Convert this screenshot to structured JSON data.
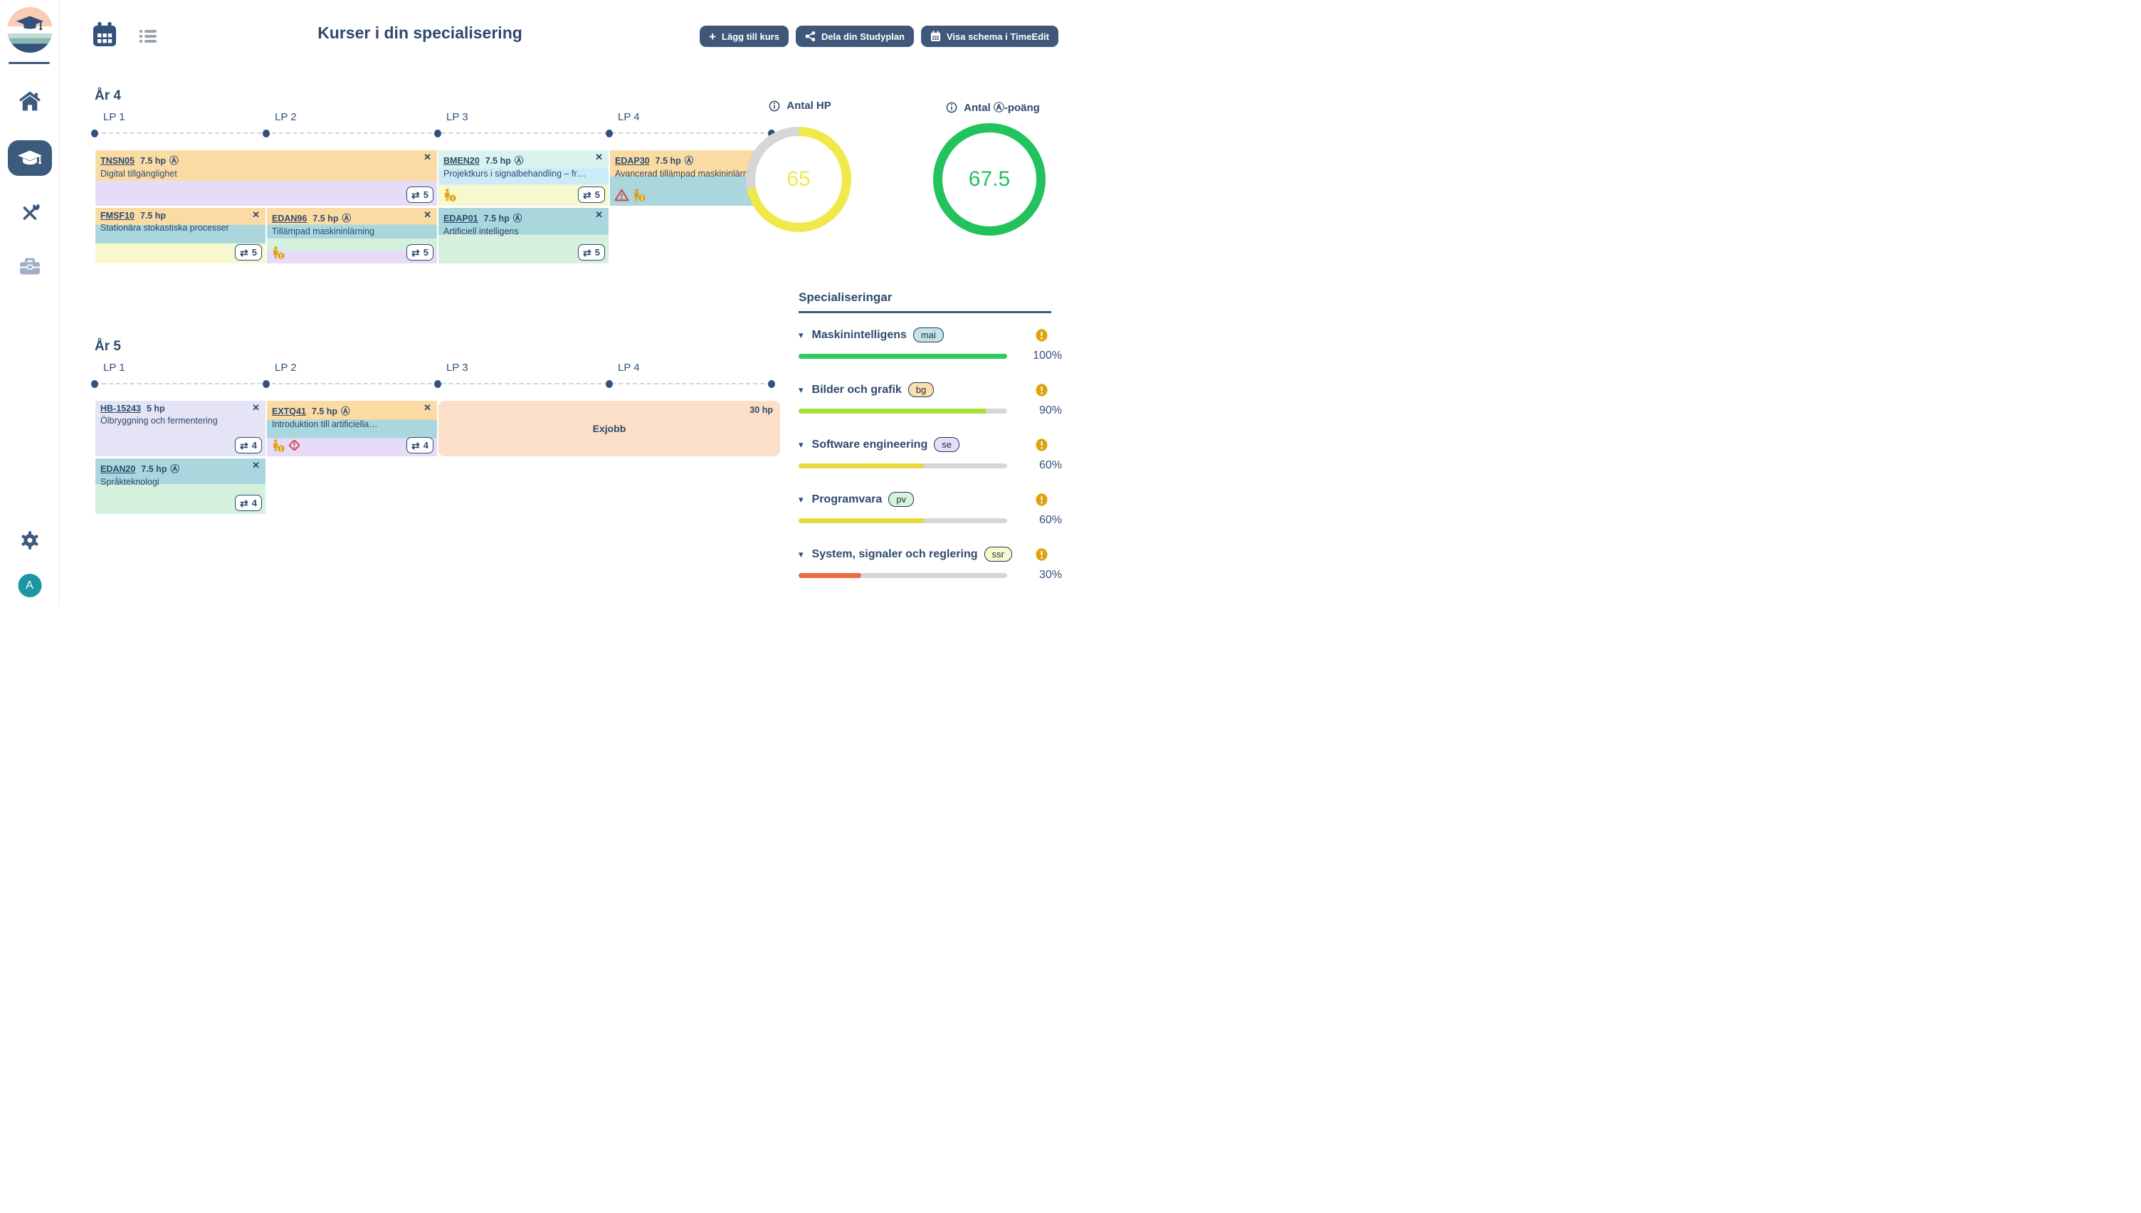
{
  "header": {
    "title": "Kurser i din specialisering",
    "buttons": [
      {
        "label": "Lägg till kurs"
      },
      {
        "label": "Dela din Studyplan"
      },
      {
        "label": "Visa schema i TimeEdit"
      }
    ]
  },
  "sidebar": {
    "avatar_letter": "A"
  },
  "advanced_glyph": "Ⓐ",
  "years": [
    {
      "label": "År 4",
      "periods": [
        "LP 1",
        "LP 2",
        "LP 3",
        "LP 4"
      ],
      "rows": [
        [
          {
            "code": "TNSN05",
            "credits": "7.5 hp",
            "advanced": true,
            "name": "Digital tillgänglighet",
            "col": 1,
            "span": 2,
            "stripes": [
              {
                "color": "#fbdba4",
                "to": 55
              },
              {
                "color": "#e6dcf7",
                "to": 100
              }
            ],
            "swap": "5",
            "warnings": []
          },
          {
            "code": "BMEN20",
            "credits": "7.5 hp",
            "advanced": true,
            "name": "Projektkurs i signalbehandling – fr…",
            "col": 3,
            "span": 1,
            "stripes": [
              {
                "color": "#d9f3ee",
                "to": 33
              },
              {
                "color": "#cdebf7",
                "to": 62
              },
              {
                "color": "#f7f8cd",
                "to": 100
              }
            ],
            "swap": "5",
            "warnings": [
              "person"
            ]
          },
          {
            "code": "EDAP30",
            "credits": "7.5 hp",
            "advanced": true,
            "name": "Avancerad tillämpad maskininlärning",
            "col": 4,
            "span": 1,
            "stripes": [
              {
                "color": "#fbdba4",
                "to": 47
              },
              {
                "color": "#a9d7dd",
                "to": 100
              }
            ],
            "swap": "5",
            "warnings": [
              "triangle",
              "person"
            ]
          }
        ],
        [
          {
            "code": "FMSF10",
            "credits": "7.5 hp",
            "advanced": false,
            "name": "Stationära stokastiska processer",
            "col": 1,
            "span": 1,
            "stripes": [
              {
                "color": "#fbdba4",
                "to": 31
              },
              {
                "color": "#a9d7dd",
                "to": 64
              },
              {
                "color": "#f7f8cd",
                "to": 100
              }
            ],
            "swap": "5",
            "warnings": []
          },
          {
            "code": "EDAN96",
            "credits": "7.5 hp",
            "advanced": true,
            "name": "Tillämpad maskininlärning",
            "col": 2,
            "span": 1,
            "stripes": [
              {
                "color": "#fbdba4",
                "to": 30
              },
              {
                "color": "#a9d7dd",
                "to": 55
              },
              {
                "color": "#d5f1dd",
                "to": 76
              },
              {
                "color": "#e6dcf7",
                "to": 100
              }
            ],
            "swap": "5",
            "warnings": [
              "person"
            ]
          },
          {
            "code": "EDAP01",
            "credits": "7.5 hp",
            "advanced": true,
            "name": "Artificiell intelligens",
            "col": 3,
            "span": 1,
            "stripes": [
              {
                "color": "#a9d7dd",
                "to": 48
              },
              {
                "color": "#d5f1dd",
                "to": 100
              }
            ],
            "swap": "5",
            "warnings": []
          }
        ]
      ]
    },
    {
      "label": "År 5",
      "periods": [
        "LP 1",
        "LP 2",
        "LP 3",
        "LP 4"
      ],
      "rows": [
        [
          {
            "code": "HB-15243",
            "credits": "5 hp",
            "advanced": false,
            "name": "Ölbryggning och fermentering",
            "col": 1,
            "span": 1,
            "stripes": [
              {
                "color": "#e5e3f6",
                "to": 100
              }
            ],
            "swap": "4",
            "warnings": []
          },
          {
            "code": "EXTQ41",
            "credits": "7.5 hp",
            "advanced": true,
            "name": "Introduktion till artificiella…",
            "col": 2,
            "span": 1,
            "stripes": [
              {
                "color": "#fbdba4",
                "to": 34
              },
              {
                "color": "#a9d7dd",
                "to": 67
              },
              {
                "color": "#e6dcf7",
                "to": 100
              }
            ],
            "swap": "4",
            "warnings": [
              "person",
              "diamond"
            ]
          },
          {
            "type": "block",
            "title": "Exjobb",
            "credits": "30 hp",
            "col": 3,
            "span": 2,
            "color": "#fcdfc8"
          }
        ],
        [
          {
            "code": "EDAN20",
            "credits": "7.5 hp",
            "advanced": true,
            "name": "Språkteknologi",
            "col": 1,
            "span": 1,
            "stripes": [
              {
                "color": "#a9d7dd",
                "to": 46
              },
              {
                "color": "#d5f1dd",
                "to": 100
              }
            ],
            "swap": "4",
            "warnings": []
          }
        ]
      ]
    }
  ],
  "stats": [
    {
      "label": "Antal HP",
      "value": "65",
      "percent": 72,
      "ring_color": "#efe94b",
      "track_color": "#d6d6d6"
    },
    {
      "label": "Antal Ⓐ-poäng",
      "value": "67.5",
      "percent": 100,
      "ring_color": "#22c25d",
      "track_color": "#d6d6d6"
    }
  ],
  "specializations": {
    "title": "Specialiseringar",
    "items": [
      {
        "name": "Maskinintelligens",
        "tag": "mai",
        "tag_color": "#c2e4ea",
        "percent": 100,
        "percent_label": "100%",
        "bar_color": "#2ecb5e"
      },
      {
        "name": "Bilder och grafik",
        "tag": "bg",
        "tag_color": "#fcdfb1",
        "percent": 90,
        "percent_label": "90%",
        "bar_color": "#a9e03a"
      },
      {
        "name": "Software engineering",
        "tag": "se",
        "tag_color": "#e9dcf8",
        "percent": 60,
        "percent_label": "60%",
        "bar_color": "#e7d840"
      },
      {
        "name": "Programvara",
        "tag": "pv",
        "tag_color": "#d6f3de",
        "percent": 60,
        "percent_label": "60%",
        "bar_color": "#e7d840"
      },
      {
        "name": "System, signaler och reglering",
        "tag": "ssr",
        "tag_color": "#f9f9cf",
        "percent": 30,
        "percent_label": "30%",
        "bar_color": "#ed6a45"
      }
    ]
  }
}
